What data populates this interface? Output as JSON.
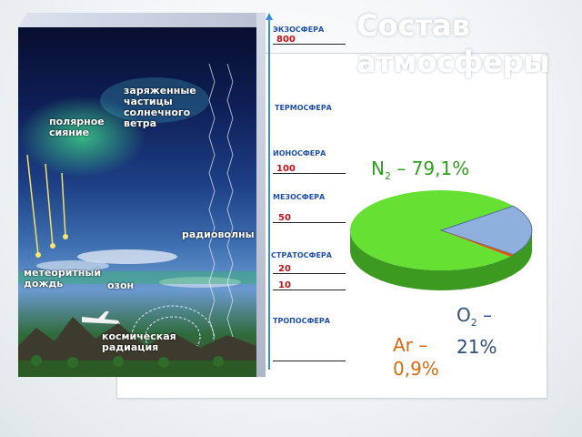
{
  "slide": {
    "title": "Состав атмосферы"
  },
  "illustration": {
    "labels": {
      "aurora": "полярное сияние",
      "particles": "заряженные частицы солнечного ветра",
      "radio": "радиоволны",
      "meteor": "метеоритный дождь",
      "ozone": "озон",
      "cosmic": "космическая радиация"
    },
    "layers": {
      "exosphere": "ЭКЗОСФЕРА",
      "thermosphere": "ТЕРМОСФЕРА",
      "ionosphere": "ИОНОСФЕРА",
      "mesosphere": "МЕЗОСФЕРА",
      "stratosphere": "СТРАТОСФЕРА",
      "troposphere": "ТРОПОСФЕРА"
    },
    "altitudes": [
      "800",
      "100",
      "50",
      "20",
      "10"
    ]
  },
  "pie": {
    "n2": {
      "symbol": "N",
      "sub": "2",
      "text": " – 79,1%",
      "color": "#2f9e1e",
      "fill": "#66e033"
    },
    "o2": {
      "symbol": "O",
      "sub": "2",
      "text_a": " –",
      "text_b": "21%",
      "color": "#2f4e7a",
      "fill": "#8fb0dc"
    },
    "ar": {
      "text_a": "Ar –",
      "text_b": "0,9%",
      "color": "#d96a0c",
      "fill": "#d55a14"
    }
  },
  "chart_data": {
    "type": "pie",
    "categories": [
      "N2",
      "O2",
      "Ar"
    ],
    "values": [
      79.1,
      21,
      0.9
    ]
  }
}
